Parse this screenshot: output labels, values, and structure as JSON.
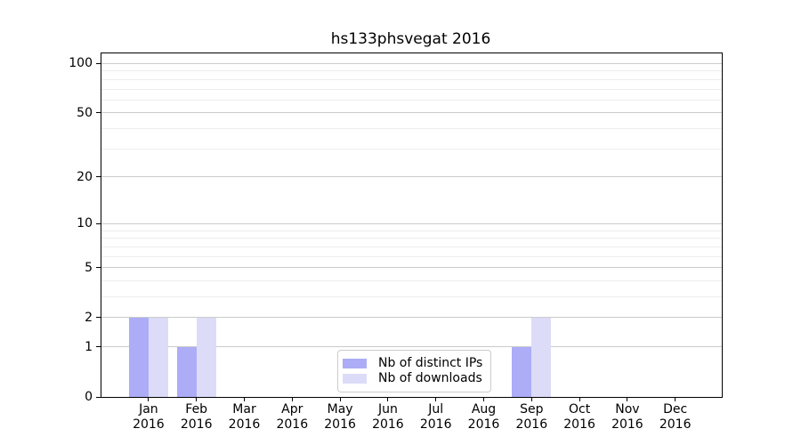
{
  "chart_data": {
    "type": "bar",
    "title": "hs133phsvegat 2016",
    "categories": [
      "Jan",
      "Feb",
      "Mar",
      "Apr",
      "May",
      "Jun",
      "Jul",
      "Aug",
      "Sep",
      "Oct",
      "Nov",
      "Dec"
    ],
    "x_year": "2016",
    "series": [
      {
        "name": "Nb of distinct IPs",
        "color": "#acacf7",
        "values": [
          2,
          1,
          0,
          0,
          0,
          0,
          0,
          0,
          1,
          0,
          0,
          0
        ]
      },
      {
        "name": "Nb of downloads",
        "color": "#dcdcf8",
        "values": [
          2,
          2,
          0,
          0,
          0,
          0,
          0,
          0,
          2,
          0,
          0,
          0
        ]
      }
    ],
    "yscale": "log1p",
    "ylim": [
      0,
      114
    ],
    "y_major_ticks": [
      0,
      1,
      2,
      5,
      10,
      20,
      50,
      100
    ],
    "y_minor_ticks": [
      3,
      4,
      6,
      7,
      8,
      9,
      30,
      40,
      60,
      70,
      80,
      90
    ],
    "grid": "horizontal",
    "legend_position": "bottom-center-inside"
  },
  "legend": {
    "items": [
      {
        "label": "Nb of distinct IPs",
        "color": "#acacf7"
      },
      {
        "label": "Nb of downloads",
        "color": "#dcdcf8"
      }
    ]
  },
  "colors": {
    "grid_major": "#cbcbcb",
    "grid_minor": "#ededed",
    "axis": "#000000",
    "background": "#ffffff"
  }
}
